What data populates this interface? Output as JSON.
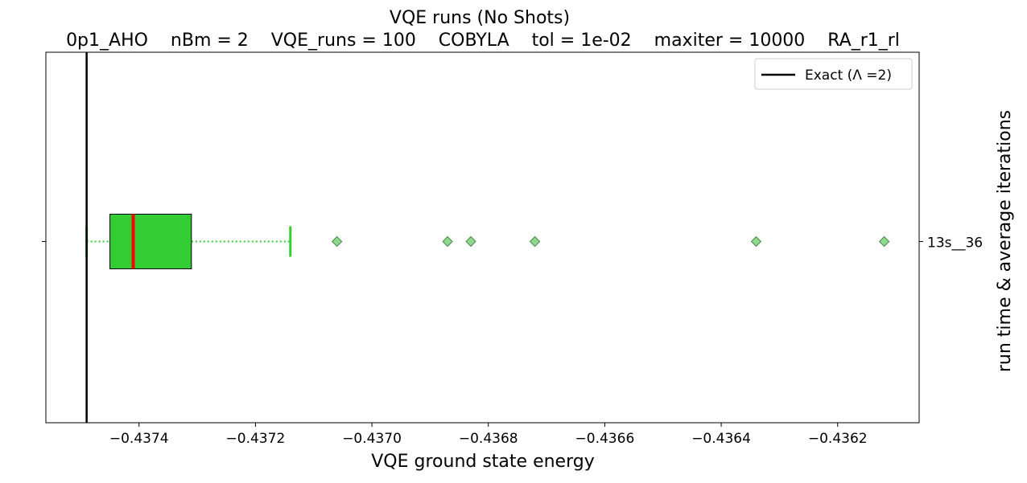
{
  "chart_data": {
    "type": "boxplot",
    "orientation": "horizontal",
    "title": "VQE runs (No Shots)",
    "subtitle": "0p1_AHO    nBm = 2    VQE_runs = 100    COBYLA    tol = 1e-02    maxiter = 10000    RA_r1_rl",
    "xlabel": "VQE ground state energy",
    "ylabel_right": "run time & average iterations",
    "xlim": [
      -0.43756,
      -0.43606
    ],
    "x_ticks": [
      -0.4374,
      -0.4372,
      -0.437,
      -0.4368,
      -0.4366,
      -0.4364,
      -0.4362
    ],
    "x_tick_labels": [
      "−0.4374",
      "−0.4372",
      "−0.4370",
      "−0.4368",
      "−0.4366",
      "−0.4364",
      "−0.4362"
    ],
    "categories": [
      "13s__36"
    ],
    "boxes": [
      {
        "whisker_low": -0.43749,
        "q1": -0.43745,
        "median": -0.43741,
        "q3": -0.43731,
        "whisker_high": -0.43714,
        "outliers": [
          -0.43706,
          -0.43687,
          -0.43683,
          -0.43672,
          -0.43634,
          -0.43612
        ]
      }
    ],
    "exact_line": {
      "x": -0.43749,
      "legend": "Exact (Λ =2)",
      "color": "#000000"
    },
    "legend_position": "top-right",
    "grid": false,
    "colors": {
      "box_fill": "#32cd32",
      "median": "#ff0000",
      "whisker": "#32cd32",
      "cap": "#32cd32",
      "outlier_fill": "#90d890",
      "outlier_edge": "#4a8a4a"
    }
  }
}
